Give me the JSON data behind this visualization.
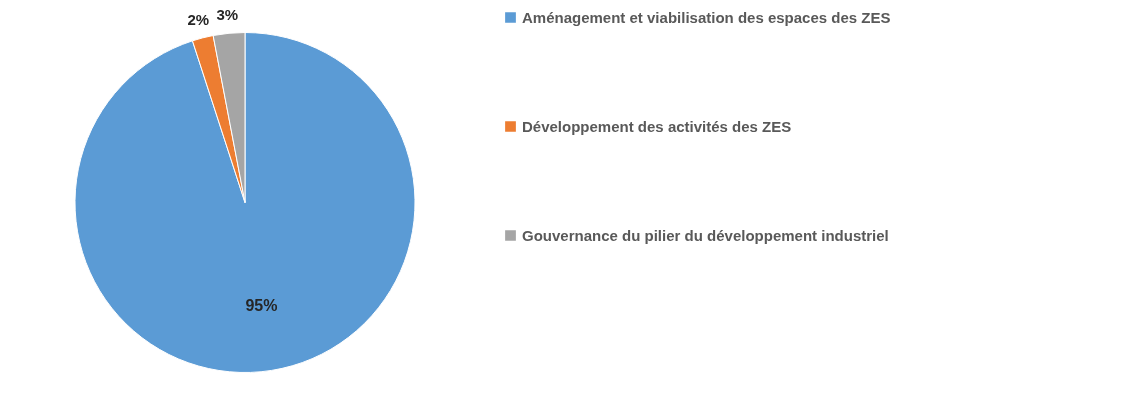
{
  "chart_data": {
    "type": "pie",
    "categories": [
      "Aménagement et viabilisation des espaces des ZES",
      "Développement des activités des ZES",
      "Gouvernance du pilier du développement industriel"
    ],
    "values": [
      95,
      2,
      3
    ],
    "colors": [
      "#5b9bd5",
      "#ed7d31",
      "#a5a5a5"
    ],
    "value_labels": [
      "95%",
      "2%",
      "3%"
    ],
    "legend": "right"
  }
}
